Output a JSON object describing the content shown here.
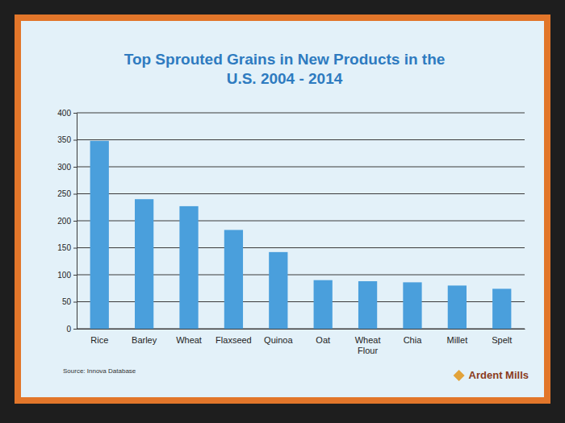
{
  "chart_data": {
    "type": "bar",
    "title": "Top Sprouted Grains in New Products in the U.S. 2004 - 2014",
    "categories": [
      "Rice",
      "Barley",
      "Wheat",
      "Flaxseed",
      "Quinoa",
      "Oat",
      "Wheat Flour",
      "Chia",
      "Millet",
      "Spelt"
    ],
    "values": [
      348,
      240,
      227,
      183,
      142,
      90,
      88,
      86,
      80,
      74
    ],
    "color": "#4a9fdc",
    "ylim": [
      0,
      400
    ],
    "yticks": [
      0,
      50,
      100,
      150,
      200,
      250,
      300,
      350,
      400
    ],
    "grid": true,
    "annotations": [
      "Source: Innova Database",
      "Ardent Mills"
    ]
  }
}
